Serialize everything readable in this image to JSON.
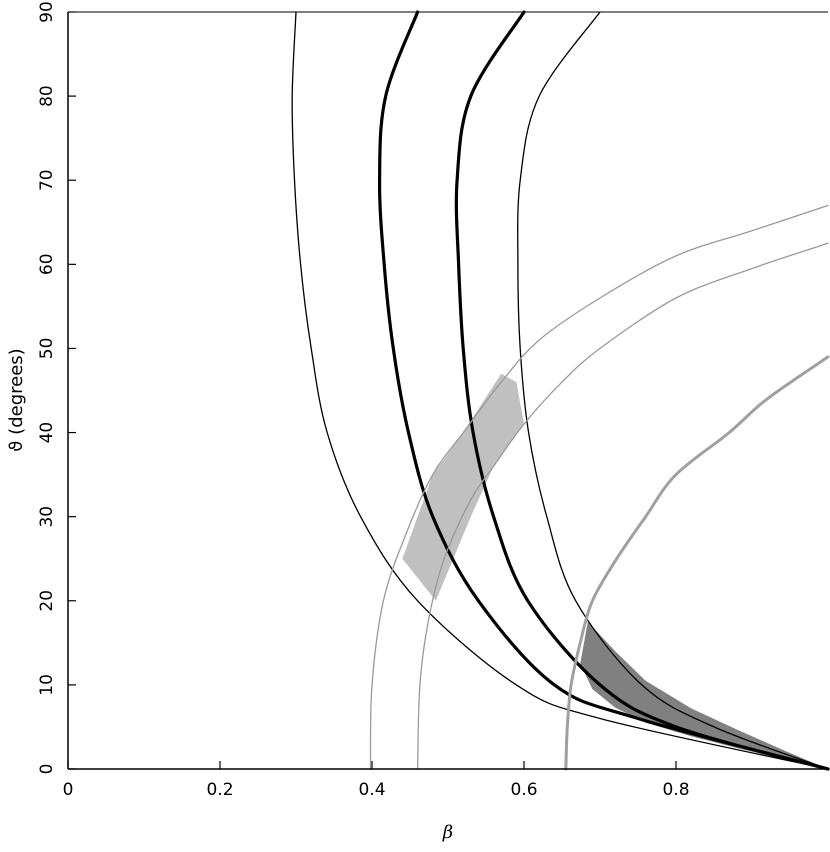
{
  "chart_data": {
    "type": "line",
    "title": "",
    "xlabel": "β",
    "ylabel": "ϑ (degrees)",
    "xlim": [
      0,
      1
    ],
    "ylim": [
      0,
      90
    ],
    "x_ticks": [
      "0",
      "0.2",
      "0.4",
      "0.6",
      "0.8"
    ],
    "y_ticks": [
      "0",
      "10",
      "20",
      "30",
      "40",
      "50",
      "60",
      "70",
      "80",
      "90"
    ],
    "grid": false,
    "legend": "none",
    "colors": {
      "black_curves": "#000000",
      "light_gray_curves": "#9a9a9a",
      "gray_curve": "#a0a0a0",
      "light_band_fill": "#c0c0c0",
      "dark_band_fill": "#808080"
    },
    "series": [
      {
        "style": "thin-black",
        "points": [
          [
            0.3,
            90
          ],
          [
            0.295,
            80
          ],
          [
            0.298,
            70
          ],
          [
            0.306,
            60
          ],
          [
            0.32,
            50
          ],
          [
            0.341,
            40
          ],
          [
            0.385,
            30
          ],
          [
            0.46,
            20
          ],
          [
            0.59,
            10
          ],
          [
            0.7,
            6
          ],
          [
            1.0,
            0
          ]
        ]
      },
      {
        "style": "thick-black",
        "points": [
          [
            0.46,
            90
          ],
          [
            0.418,
            80
          ],
          [
            0.41,
            70
          ],
          [
            0.416,
            60
          ],
          [
            0.428,
            50
          ],
          [
            0.448,
            40
          ],
          [
            0.48,
            30
          ],
          [
            0.54,
            20
          ],
          [
            0.64,
            10
          ],
          [
            0.75,
            6
          ],
          [
            1.0,
            0
          ]
        ]
      },
      {
        "style": "thick-black",
        "points": [
          [
            0.6,
            90
          ],
          [
            0.53,
            80
          ],
          [
            0.512,
            70
          ],
          [
            0.514,
            60
          ],
          [
            0.52,
            50
          ],
          [
            0.533,
            40
          ],
          [
            0.56,
            30
          ],
          [
            0.605,
            20
          ],
          [
            0.7,
            10
          ],
          [
            0.8,
            5
          ],
          [
            1.0,
            0
          ]
        ]
      },
      {
        "style": "thin-black",
        "points": [
          [
            0.7,
            90
          ],
          [
            0.62,
            80
          ],
          [
            0.595,
            70
          ],
          [
            0.592,
            60
          ],
          [
            0.595,
            50
          ],
          [
            0.606,
            40
          ],
          [
            0.63,
            30
          ],
          [
            0.668,
            20
          ],
          [
            0.755,
            10
          ],
          [
            0.85,
            5
          ],
          [
            1.0,
            0
          ]
        ]
      },
      {
        "style": "thin-gray",
        "points": [
          [
            0.398,
            0
          ],
          [
            0.4,
            10
          ],
          [
            0.415,
            20
          ],
          [
            0.445,
            28
          ],
          [
            0.48,
            35
          ],
          [
            0.52,
            40
          ],
          [
            0.57,
            46
          ],
          [
            0.62,
            51
          ],
          [
            0.7,
            56
          ],
          [
            0.8,
            61
          ],
          [
            0.9,
            64
          ],
          [
            1.0,
            67
          ]
        ]
      },
      {
        "style": "thin-gray",
        "points": [
          [
            0.46,
            0
          ],
          [
            0.463,
            10
          ],
          [
            0.475,
            18
          ],
          [
            0.495,
            25
          ],
          [
            0.53,
            32
          ],
          [
            0.56,
            36
          ],
          [
            0.6,
            41
          ],
          [
            0.65,
            46
          ],
          [
            0.7,
            50
          ],
          [
            0.8,
            56
          ],
          [
            0.9,
            59.5
          ],
          [
            1.0,
            62.5
          ]
        ]
      },
      {
        "style": "thick-gray",
        "points": [
          [
            0.655,
            0
          ],
          [
            0.657,
            5
          ],
          [
            0.662,
            10
          ],
          [
            0.674,
            15
          ],
          [
            0.69,
            20
          ],
          [
            0.722,
            25
          ],
          [
            0.76,
            30
          ],
          [
            0.8,
            35
          ],
          [
            0.87,
            40
          ],
          [
            0.92,
            44
          ],
          [
            1.0,
            49
          ]
        ]
      }
    ],
    "shaded_regions": [
      {
        "style": "light-band",
        "points": [
          [
            0.44,
            25
          ],
          [
            0.484,
            20
          ],
          [
            0.53,
            30
          ],
          [
            0.56,
            36
          ],
          [
            0.6,
            41
          ],
          [
            0.59,
            46
          ],
          [
            0.57,
            47
          ],
          [
            0.52,
            40
          ],
          [
            0.48,
            35
          ]
        ]
      },
      {
        "style": "dark-band",
        "points": [
          [
            0.684,
            17.5
          ],
          [
            0.72,
            14
          ],
          [
            0.76,
            10.5
          ],
          [
            0.82,
            7.2
          ],
          [
            0.88,
            4.7
          ],
          [
            0.94,
            2.3
          ],
          [
            1.0,
            0
          ],
          [
            0.94,
            1.2
          ],
          [
            0.88,
            2.5
          ],
          [
            0.82,
            3.9
          ],
          [
            0.76,
            5.5
          ],
          [
            0.72,
            7.3
          ],
          [
            0.69,
            9.5
          ],
          [
            0.674,
            12.5
          ]
        ]
      }
    ]
  }
}
